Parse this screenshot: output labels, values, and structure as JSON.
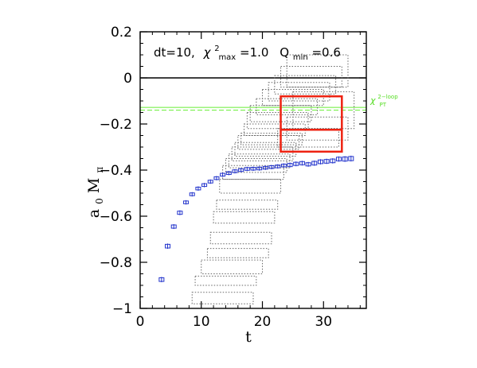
{
  "chart_data": {
    "type": "scatter",
    "xlabel": "t",
    "ylabel": "a",
    "ylabel_sub": "0",
    "ylabel_main": "M",
    "ylabel_sub2": "π",
    "xlim": [
      0,
      37
    ],
    "ylim": [
      -1,
      0.2
    ],
    "xticks": [
      0,
      10,
      20,
      30
    ],
    "yticks": [
      -1,
      -0.8,
      -0.6,
      -0.4,
      -0.2,
      0,
      0.2
    ],
    "ytick_labels": [
      "−1",
      "−0.8",
      "−0.6",
      "−0.4",
      "−0.2",
      "0",
      "0.2"
    ],
    "xtick_labels": [
      "0",
      "10",
      "20",
      "30"
    ],
    "annotation": {
      "dt": "dt=10,",
      "chi_symbol": "χ",
      "chi_sup": "2",
      "chi_sub": "max",
      "chi_value": "=1.0",
      "q_symbol": "Q",
      "q_sub": "min",
      "q_value": "=0.6"
    },
    "chpt_label": {
      "main": "χ",
      "sub": "PT",
      "sup": "2−loop"
    },
    "zero_line": 0,
    "chpt_band": {
      "upper": -0.128,
      "lower": -0.14,
      "color": "#66ee33"
    },
    "points_color": "#2233cc",
    "data_points": [
      {
        "x": 3.5,
        "y": -0.875,
        "err": 0.008
      },
      {
        "x": 4.5,
        "y": -0.73,
        "err": 0.008
      },
      {
        "x": 5.5,
        "y": -0.645,
        "err": 0.007
      },
      {
        "x": 6.5,
        "y": -0.585,
        "err": 0.007
      },
      {
        "x": 7.5,
        "y": -0.54,
        "err": 0.006
      },
      {
        "x": 8.5,
        "y": -0.505,
        "err": 0.006
      },
      {
        "x": 9.5,
        "y": -0.48,
        "err": 0.006
      },
      {
        "x": 10.5,
        "y": -0.465,
        "err": 0.006
      },
      {
        "x": 11.5,
        "y": -0.45,
        "err": 0.006
      },
      {
        "x": 12.5,
        "y": -0.435,
        "err": 0.006
      },
      {
        "x": 13.5,
        "y": -0.42,
        "err": 0.006
      },
      {
        "x": 14.5,
        "y": -0.413,
        "err": 0.006
      },
      {
        "x": 15.5,
        "y": -0.405,
        "err": 0.006
      },
      {
        "x": 16.5,
        "y": -0.4,
        "err": 0.006
      },
      {
        "x": 17.5,
        "y": -0.395,
        "err": 0.006
      },
      {
        "x": 18.5,
        "y": -0.394,
        "err": 0.006
      },
      {
        "x": 19.5,
        "y": -0.393,
        "err": 0.006
      },
      {
        "x": 20.5,
        "y": -0.39,
        "err": 0.006
      },
      {
        "x": 21.5,
        "y": -0.387,
        "err": 0.006
      },
      {
        "x": 22.5,
        "y": -0.384,
        "err": 0.006
      },
      {
        "x": 23.5,
        "y": -0.38,
        "err": 0.006
      },
      {
        "x": 24.5,
        "y": -0.378,
        "err": 0.007
      },
      {
        "x": 25.5,
        "y": -0.373,
        "err": 0.007
      },
      {
        "x": 26.5,
        "y": -0.37,
        "err": 0.007
      },
      {
        "x": 27.5,
        "y": -0.375,
        "err": 0.007
      },
      {
        "x": 28.5,
        "y": -0.37,
        "err": 0.008
      },
      {
        "x": 29.5,
        "y": -0.364,
        "err": 0.008
      },
      {
        "x": 30.5,
        "y": -0.362,
        "err": 0.008
      },
      {
        "x": 31.5,
        "y": -0.36,
        "err": 0.008
      },
      {
        "x": 32.5,
        "y": -0.352,
        "err": 0.008
      },
      {
        "x": 33.5,
        "y": -0.352,
        "err": 0.009
      },
      {
        "x": 34.5,
        "y": -0.35,
        "err": 0.009
      }
    ],
    "fit_boxes": [
      {
        "t_min": 8.5,
        "t_max": 18.5,
        "y_low": -0.98,
        "y_high": -0.93
      },
      {
        "t_min": 9,
        "t_max": 19,
        "y_low": -0.9,
        "y_high": -0.86
      },
      {
        "t_min": 10,
        "t_max": 20,
        "y_low": -0.85,
        "y_high": -0.79
      },
      {
        "t_min": 11,
        "t_max": 21,
        "y_low": -0.78,
        "y_high": -0.74
      },
      {
        "t_min": 11.5,
        "t_max": 21.5,
        "y_low": -0.72,
        "y_high": -0.67
      },
      {
        "t_min": 12,
        "t_max": 22,
        "y_low": -0.63,
        "y_high": -0.58
      },
      {
        "t_min": 12.5,
        "t_max": 22.5,
        "y_low": -0.57,
        "y_high": -0.53
      },
      {
        "t_min": 13,
        "t_max": 23,
        "y_low": -0.5,
        "y_high": -0.44
      },
      {
        "t_min": 13.5,
        "t_max": 23.5,
        "y_low": -0.44,
        "y_high": -0.38
      },
      {
        "t_min": 14,
        "t_max": 24,
        "y_low": -0.41,
        "y_high": -0.35
      },
      {
        "t_min": 14.5,
        "t_max": 24.5,
        "y_low": -0.39,
        "y_high": -0.33
      },
      {
        "t_min": 15,
        "t_max": 25,
        "y_low": -0.36,
        "y_high": -0.3
      },
      {
        "t_min": 15.5,
        "t_max": 25.5,
        "y_low": -0.34,
        "y_high": -0.28
      },
      {
        "t_min": 16,
        "t_max": 26,
        "y_low": -0.31,
        "y_high": -0.25
      },
      {
        "t_min": 16.5,
        "t_max": 26.5,
        "y_low": -0.29,
        "y_high": -0.24
      },
      {
        "t_min": 17,
        "t_max": 27,
        "y_low": -0.25,
        "y_high": -0.2
      },
      {
        "t_min": 17.5,
        "t_max": 27.5,
        "y_low": -0.22,
        "y_high": -0.15
      },
      {
        "t_min": 18,
        "t_max": 28,
        "y_low": -0.19,
        "y_high": -0.12
      },
      {
        "t_min": 19,
        "t_max": 29,
        "y_low": -0.16,
        "y_high": -0.09
      },
      {
        "t_min": 20,
        "t_max": 30,
        "y_low": -0.12,
        "y_high": -0.05
      },
      {
        "t_min": 21,
        "t_max": 31,
        "y_low": -0.1,
        "y_high": -0.02
      },
      {
        "t_min": 22,
        "t_max": 32,
        "y_low": -0.07,
        "y_high": 0.01
      },
      {
        "t_min": 23,
        "t_max": 33,
        "y_low": -0.04,
        "y_high": 0.05
      },
      {
        "t_min": 24,
        "t_max": 34,
        "y_low": -0.04,
        "y_high": 0.1
      },
      {
        "t_min": 25,
        "t_max": 35,
        "y_low": -0.22,
        "y_high": -0.06
      },
      {
        "t_min": 24,
        "t_max": 34,
        "y_low": -0.27,
        "y_high": -0.17
      },
      {
        "t_min": 22.5,
        "t_max": 32.5,
        "y_low": -0.3,
        "y_high": -0.22
      }
    ],
    "box_color": "#666666",
    "best_fit": {
      "t_min": 23,
      "t_max": 33,
      "y_low": -0.32,
      "y_high": -0.08,
      "central": -0.225,
      "color": "#ee2211"
    }
  }
}
